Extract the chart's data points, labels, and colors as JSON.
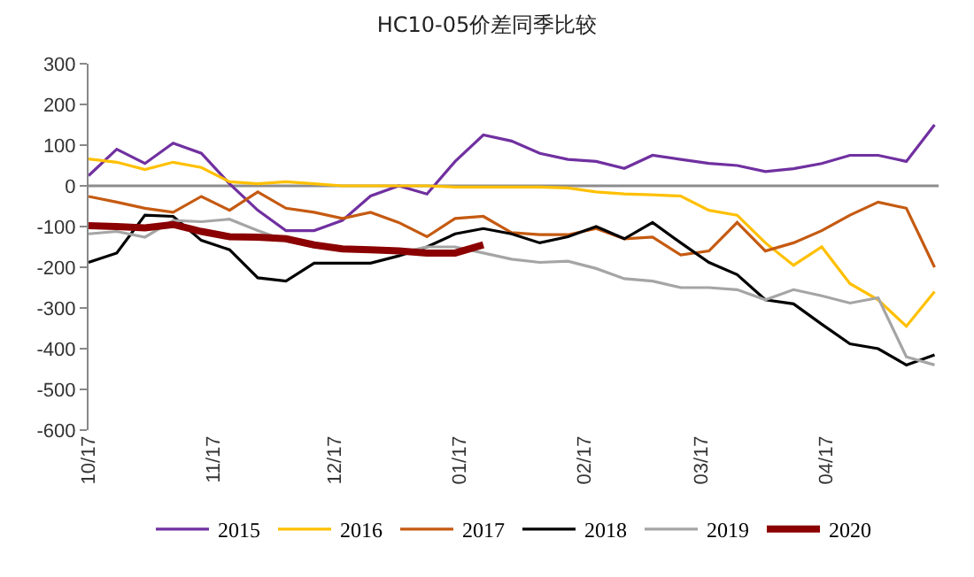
{
  "chart_data": {
    "type": "line",
    "title": "HC10-05价差同季比较",
    "x": [
      "2019-10-17",
      "2019-10-24",
      "2019-10-31",
      "2019-11-07",
      "2019-11-14",
      "2019-11-21",
      "2019-11-28",
      "2019-12-05",
      "2019-12-12",
      "2019-12-19",
      "2019-12-26",
      "2020-01-02",
      "2020-01-09",
      "2020-01-16",
      "2020-01-23",
      "2020-01-30",
      "2020-02-06",
      "2020-02-13",
      "2020-02-20",
      "2020-02-27",
      "2020-03-05",
      "2020-03-12",
      "2020-03-19",
      "2020-03-26",
      "2020-04-02",
      "2020-04-09",
      "2020-04-16",
      "2020-04-23",
      "2020-04-30",
      "2020-05-07",
      "2020-05-14"
    ],
    "series": [
      {
        "name": "2015",
        "color": "#7030a0",
        "values": [
          25,
          90,
          55,
          105,
          80,
          5,
          -60,
          -110,
          -110,
          -85,
          -25,
          0,
          -20,
          60,
          125,
          110,
          80,
          65,
          60,
          43,
          75,
          65,
          55,
          50,
          35,
          42,
          55,
          75,
          75,
          60,
          150
        ]
      },
      {
        "name": "2016",
        "color": "#ffc000",
        "values": [
          66,
          58,
          40,
          58,
          45,
          10,
          5,
          10,
          5,
          0,
          0,
          0,
          0,
          -3,
          -3,
          -3,
          -3,
          -5,
          -15,
          -20,
          -22,
          -25,
          -60,
          -72,
          -140,
          -195,
          -150,
          -240,
          -280,
          -345,
          -260
        ]
      },
      {
        "name": "2017",
        "color": "#c55a11",
        "values": [
          -26,
          -40,
          -55,
          -65,
          -26,
          -60,
          -15,
          -55,
          -65,
          -80,
          -65,
          -90,
          -125,
          -80,
          -75,
          -115,
          -120,
          -120,
          -105,
          -130,
          -126,
          -170,
          -160,
          -90,
          -160,
          -140,
          -110,
          -72,
          -40,
          -55,
          -200
        ]
      },
      {
        "name": "2018",
        "color": "#000000",
        "values": [
          -188,
          -165,
          -72,
          -75,
          -134,
          -157,
          -226,
          -234,
          -190,
          -190,
          -190,
          -172,
          -150,
          -118,
          -105,
          -118,
          -140,
          -125,
          -100,
          -130,
          -90,
          -140,
          -188,
          -218,
          -280,
          -290,
          -340,
          -388,
          -400,
          -440,
          -415
        ]
      },
      {
        "name": "2019",
        "color": "#a5a5a5",
        "values": [
          -118,
          -112,
          -126,
          -85,
          -88,
          -82,
          -110,
          -135,
          -150,
          -157,
          -157,
          -165,
          -150,
          -150,
          -165,
          -180,
          -188,
          -185,
          -203,
          -228,
          -234,
          -250,
          -250,
          -255,
          -280,
          -255,
          -270,
          -288,
          -275,
          -420,
          -440
        ]
      },
      {
        "name": "2020",
        "color": "#8b0000",
        "values": [
          -98,
          -100,
          -103,
          -95,
          -112,
          -125,
          -126,
          -130,
          -145,
          -155,
          -157,
          -160,
          -165,
          -165,
          -145,
          null,
          null,
          null,
          null,
          null,
          null,
          null,
          null,
          null,
          null,
          null,
          null,
          null,
          null,
          null,
          null
        ]
      }
    ],
    "xlim": [
      "2019-10-17",
      "2020-05-15"
    ],
    "xticks": [
      {
        "value": "2019-10-17",
        "label": "10/17"
      },
      {
        "value": "2019-11-17",
        "label": "11/17"
      },
      {
        "value": "2019-12-17",
        "label": "12/17"
      },
      {
        "value": "2020-01-17",
        "label": "01/17"
      },
      {
        "value": "2020-02-17",
        "label": "02/17"
      },
      {
        "value": "2020-03-17",
        "label": "03/17"
      },
      {
        "value": "2020-04-17",
        "label": "04/17"
      }
    ],
    "ylim": [
      -600,
      300
    ],
    "yticks": [
      -600,
      -500,
      -400,
      -300,
      -200,
      -100,
      0,
      100,
      200,
      300
    ],
    "ref_lines": [
      {
        "axis": "y",
        "value": 0,
        "color": "#8c8c8c",
        "line_style": "solid"
      }
    ],
    "grid": false,
    "legend": "bottom",
    "marker": "none",
    "line_style": "solid"
  }
}
